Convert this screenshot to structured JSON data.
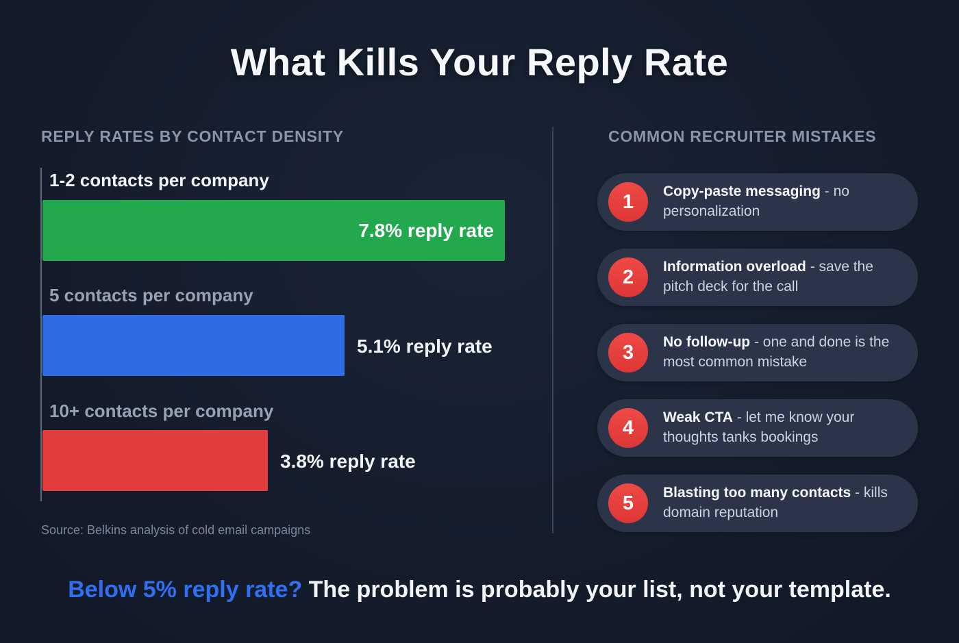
{
  "title": "What Kills Your Reply Rate",
  "chart_section": {
    "heading": "REPLY RATES BY CONTACT DENSITY",
    "source": "Source: Belkins analysis of cold email campaigns"
  },
  "chart_data": {
    "type": "bar",
    "orientation": "horizontal",
    "title": "REPLY RATES BY CONTACT DENSITY",
    "categories": [
      "1-2 contacts per company",
      "5 contacts per company",
      "10+ contacts per company"
    ],
    "values": [
      7.8,
      5.1,
      3.8
    ],
    "value_labels": [
      "7.8% reply rate",
      "5.1% reply rate",
      "3.8% reply rate"
    ],
    "bar_colors": [
      "#22a94e",
      "#2e6be5",
      "#e23d3d"
    ],
    "xlim": [
      0,
      7.8
    ],
    "grid": false,
    "legend": false
  },
  "mistakes_section": {
    "heading": "COMMON RECRUITER MISTAKES",
    "items": [
      {
        "number": "1",
        "bold": "Copy-paste messaging",
        "rest": " - no personalization"
      },
      {
        "number": "2",
        "bold": "Information overload",
        "rest": " - save the pitch deck for the call"
      },
      {
        "number": "3",
        "bold": "No follow-up",
        "rest": " - one and done is the most common mistake"
      },
      {
        "number": "4",
        "bold": "Weak CTA",
        "rest": " - let me know your thoughts tanks bookings"
      },
      {
        "number": "5",
        "bold": "Blasting too many contacts",
        "rest": " - kills domain reputation"
      }
    ]
  },
  "footer": {
    "highlight": "Below 5% reply rate?",
    "rest": " The problem is probably your list, not your template."
  },
  "colors": {
    "background": "#151d2d",
    "card_background": "#2b3449",
    "green_bar": "#22a94e",
    "blue_bar": "#2e6be5",
    "red_bar": "#e23d3d",
    "badge_red": "#e23d3d",
    "muted_text": "#8b95a7",
    "accent_blue": "#2f6ff0"
  }
}
